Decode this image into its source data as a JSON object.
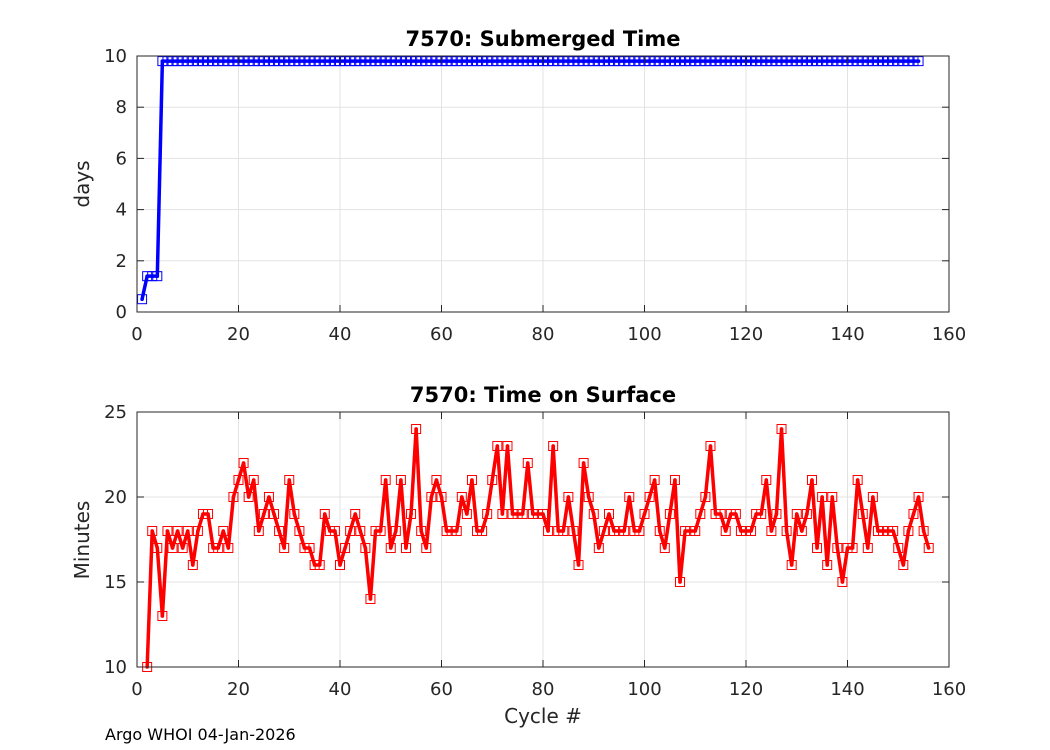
{
  "chart_data": [
    {
      "type": "line",
      "title": "7570: Submerged Time",
      "xlabel": "",
      "ylabel": "days",
      "xlim": [
        0,
        160
      ],
      "ylim": [
        0,
        10
      ],
      "xticks": [
        0,
        20,
        40,
        60,
        80,
        100,
        120,
        140,
        160
      ],
      "yticks": [
        0,
        2,
        4,
        6,
        8,
        10
      ],
      "grid": true,
      "color": "#0000ff",
      "marker": "square",
      "series": [
        {
          "name": "Submerged Time",
          "x": [
            1,
            2,
            3,
            4,
            5,
            154
          ],
          "y": [
            0.5,
            1.4,
            1.4,
            1.4,
            9.8,
            9.8
          ],
          "marker_range": [
            5,
            154
          ]
        }
      ]
    },
    {
      "type": "line",
      "title": "7570: Time on Surface",
      "xlabel": "Cycle #",
      "ylabel": "Minutes",
      "xlim": [
        0,
        160
      ],
      "ylim": [
        10,
        25
      ],
      "xticks": [
        0,
        20,
        40,
        60,
        80,
        100,
        120,
        140,
        160
      ],
      "yticks": [
        10,
        15,
        20,
        25
      ],
      "grid": true,
      "color": "#ff0000",
      "marker": "square",
      "series": [
        {
          "name": "Time on Surface",
          "x_start": 2,
          "y": [
            10,
            18,
            17,
            13,
            18,
            17,
            18,
            17,
            18,
            16,
            18,
            19,
            19,
            17,
            17,
            18,
            17,
            20,
            21,
            22,
            20,
            21,
            18,
            19,
            20,
            19,
            18,
            17,
            21,
            19,
            18,
            17,
            17,
            16,
            16,
            19,
            18,
            18,
            16,
            17,
            18,
            19,
            18,
            17,
            14,
            18,
            18,
            21,
            17,
            18,
            21,
            17,
            19,
            24,
            18,
            17,
            20,
            21,
            20,
            18,
            18,
            18,
            20,
            19,
            21,
            18,
            18,
            19,
            21,
            23,
            19,
            23,
            19,
            19,
            19,
            22,
            19,
            19,
            19,
            18,
            23,
            18,
            18,
            20,
            18,
            16,
            22,
            20,
            19,
            17,
            18,
            19,
            18,
            18,
            18,
            20,
            18,
            18,
            19,
            20,
            21,
            18,
            17,
            19,
            21,
            15,
            18,
            18,
            18,
            19,
            20,
            23,
            19,
            19,
            18,
            19,
            19,
            18,
            18,
            18,
            19,
            19,
            21,
            18,
            19,
            24,
            18,
            16,
            19,
            18,
            19,
            21,
            17,
            20,
            16,
            20,
            17,
            15,
            17,
            17,
            21,
            19,
            17,
            20,
            18,
            18,
            18,
            18,
            17,
            16,
            18,
            19,
            20,
            18,
            17
          ]
        }
      ]
    }
  ],
  "footer": {
    "text": "Argo WHOI 04-Jan-2026"
  }
}
